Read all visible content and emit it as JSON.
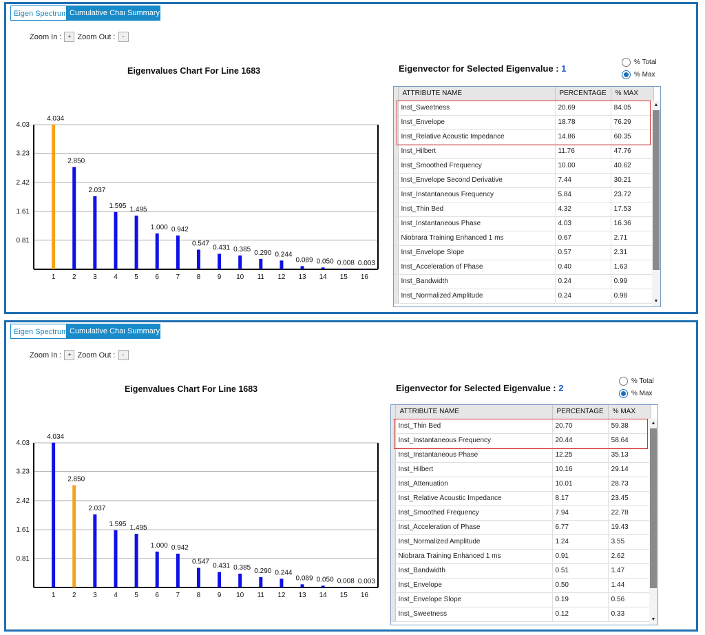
{
  "panels": [
    {
      "tabs": [
        "Eigen Spectrum",
        "Cumulative Chart",
        "Summary"
      ],
      "active_tab": 0,
      "zoom_in_label": "Zoom In :",
      "zoom_in_button": "+",
      "zoom_out_label": "Zoom Out :",
      "zoom_out_button": "-",
      "chart_title": "Eigenvalues Chart For Line  1683",
      "eigenvector_title": "Eigenvector for Selected Eigenvalue :",
      "selected_eigenvalue": "1",
      "radio_total": "% Total",
      "radio_max": "% Max",
      "radio_selected": "max",
      "columns": [
        "ATTRIBUTE NAME",
        "PERCENTAGE",
        "% MAX"
      ],
      "highlighted_rows": 3,
      "rows": [
        [
          "Inst_Sweetness",
          "20.69",
          "84.05"
        ],
        [
          "Inst_Envelope",
          "18.78",
          "76.29"
        ],
        [
          "Inst_Relative Acoustic Impedance",
          "14.86",
          "60.35"
        ],
        [
          "Inst_Hilbert",
          "11.76",
          "47.76"
        ],
        [
          "Inst_Smoothed Frequency",
          "10.00",
          "40.62"
        ],
        [
          "Inst_Envelope Second Derivative",
          "7.44",
          "30.21"
        ],
        [
          "Inst_Instantaneous Frequency",
          "5.84",
          "23.72"
        ],
        [
          "Inst_Thin Bed",
          "4.32",
          "17.53"
        ],
        [
          "Inst_Instantaneous Phase",
          "4.03",
          "16.36"
        ],
        [
          "Niobrara Training Enhanced 1 ms",
          "0.67",
          "2.71"
        ],
        [
          "Inst_Envelope Slope",
          "0.57",
          "2.31"
        ],
        [
          "Inst_Acceleration of Phase",
          "0.40",
          "1.63"
        ],
        [
          "Inst_Bandwidth",
          "0.24",
          "0.99"
        ],
        [
          "Inst_Normalized Amplitude",
          "0.24",
          "0.98"
        ]
      ],
      "scroll_up_icon": "▲",
      "scroll_down_icon": "▼"
    },
    {
      "tabs": [
        "Eigen Spectrum",
        "Cumulative Chart",
        "Summary"
      ],
      "active_tab": 0,
      "zoom_in_label": "Zoom In :",
      "zoom_in_button": "+",
      "zoom_out_label": "Zoom Out :",
      "zoom_out_button": "-",
      "chart_title": "Eigenvalues Chart For Line  1683",
      "eigenvector_title": "Eigenvector for Selected Eigenvalue :",
      "selected_eigenvalue": "2",
      "radio_total": "% Total",
      "radio_max": "% Max",
      "radio_selected": "max",
      "columns": [
        "ATTRIBUTE NAME",
        "PERCENTAGE",
        "% MAX"
      ],
      "highlighted_rows": 2,
      "rows": [
        [
          "Inst_Thin Bed",
          "20.70",
          "59.38"
        ],
        [
          "Inst_Instantaneous Frequency",
          "20.44",
          "58.64"
        ],
        [
          "Inst_Instantaneous Phase",
          "12.25",
          "35.13"
        ],
        [
          "Inst_Hilbert",
          "10.16",
          "29.14"
        ],
        [
          "Inst_Attenuation",
          "10.01",
          "28.73"
        ],
        [
          "Inst_Relative Acoustic Impedance",
          "8.17",
          "23.45"
        ],
        [
          "Inst_Smoothed Frequency",
          "7.94",
          "22.78"
        ],
        [
          "Inst_Acceleration of Phase",
          "6.77",
          "19.43"
        ],
        [
          "Inst_Normalized Amplitude",
          "1.24",
          "3.55"
        ],
        [
          "Niobrara Training Enhanced 1 ms",
          "0.91",
          "2.62"
        ],
        [
          "Inst_Bandwidth",
          "0.51",
          "1.47"
        ],
        [
          "Inst_Envelope",
          "0.50",
          "1.44"
        ],
        [
          "Inst_Envelope Slope",
          "0.19",
          "0.56"
        ],
        [
          "Inst_Sweetness",
          "0.12",
          "0.33"
        ]
      ],
      "scroll_up_icon": "▲",
      "scroll_down_icon": "▼"
    }
  ],
  "colors": {
    "bar": "#1010e8",
    "selected_bar": "#f5a21e",
    "tab_bg": "#1a8bc9",
    "panel_border": "#1f6fb2",
    "highlight": "#d83030"
  },
  "chart_data": [
    {
      "type": "bar",
      "title": "Eigenvalues Chart For Line  1683",
      "categories": [
        "1",
        "2",
        "3",
        "4",
        "5",
        "6",
        "7",
        "8",
        "9",
        "10",
        "11",
        "12",
        "13",
        "14",
        "15",
        "16"
      ],
      "values": [
        4.034,
        2.85,
        2.037,
        1.595,
        1.495,
        1.0,
        0.942,
        0.547,
        0.431,
        0.385,
        0.29,
        0.244,
        0.089,
        0.05,
        0.008,
        0.003
      ],
      "labels": [
        "4.034",
        "2.850",
        "2.037",
        "1.595",
        "1.495",
        "1.000",
        "0.942",
        "0.547",
        "0.431",
        "0.385",
        "0.290",
        "0.244",
        "0.089",
        "0.050",
        "0.008",
        "0.003"
      ],
      "selected_index": 0,
      "yticks": [
        "0.81",
        "1.61",
        "2.42",
        "3.23",
        "4.03"
      ],
      "ytick_values": [
        0.81,
        1.61,
        2.42,
        3.23,
        4.03
      ],
      "ylim": [
        0,
        4.03
      ],
      "grid": true
    },
    {
      "type": "bar",
      "title": "Eigenvalues Chart For Line  1683",
      "categories": [
        "1",
        "2",
        "3",
        "4",
        "5",
        "6",
        "7",
        "8",
        "9",
        "10",
        "11",
        "12",
        "13",
        "14",
        "15",
        "16"
      ],
      "values": [
        4.034,
        2.85,
        2.037,
        1.595,
        1.495,
        1.0,
        0.942,
        0.547,
        0.431,
        0.385,
        0.29,
        0.244,
        0.089,
        0.05,
        0.008,
        0.003
      ],
      "labels": [
        "4.034",
        "2.850",
        "2.037",
        "1.595",
        "1.495",
        "1.000",
        "0.942",
        "0.547",
        "0.431",
        "0.385",
        "0.290",
        "0.244",
        "0.089",
        "0.050",
        "0.008",
        "0.003"
      ],
      "selected_index": 1,
      "yticks": [
        "0.81",
        "1.61",
        "2.42",
        "3.23",
        "4.03"
      ],
      "ytick_values": [
        0.81,
        1.61,
        2.42,
        3.23,
        4.03
      ],
      "ylim": [
        0,
        4.03
      ],
      "grid": true
    }
  ]
}
